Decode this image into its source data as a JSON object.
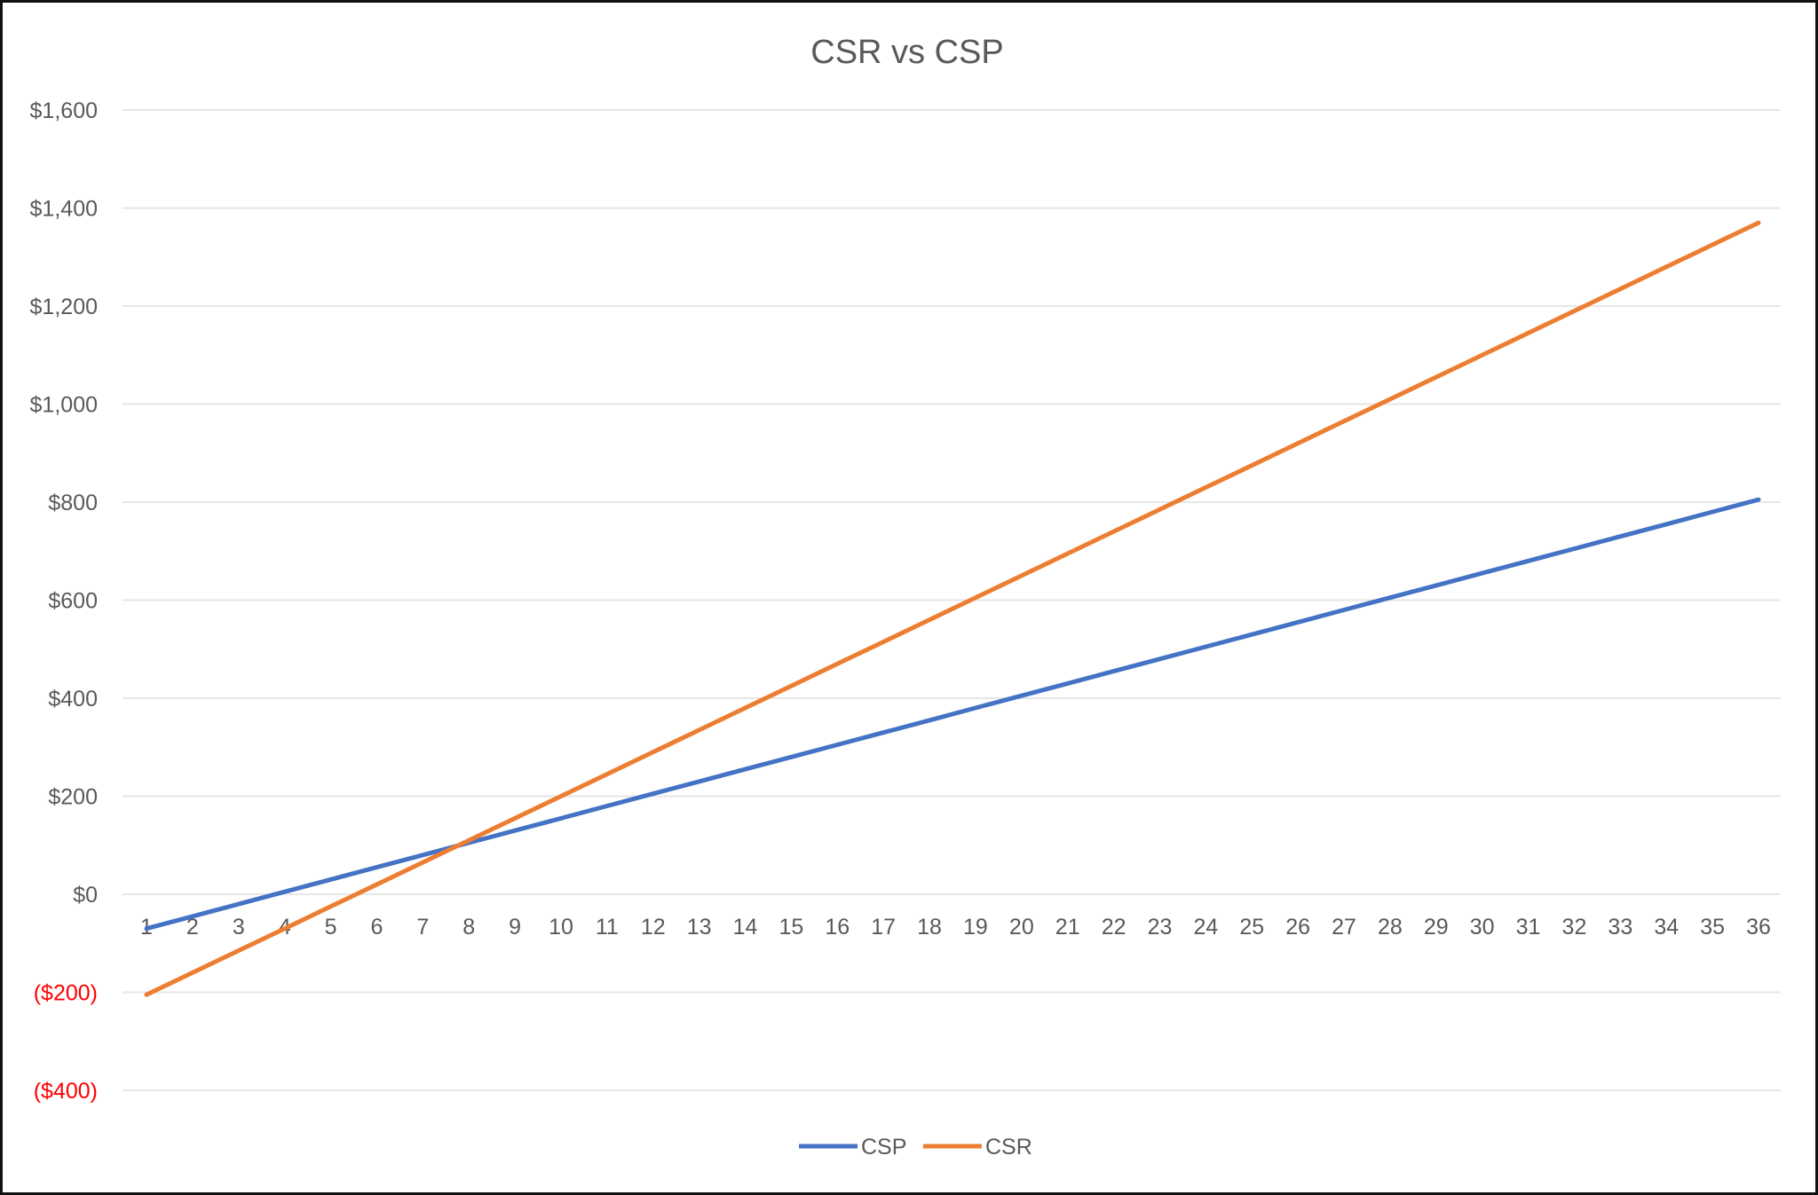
{
  "chart_data": {
    "type": "line",
    "title": "CSR vs CSP",
    "xlabel": "",
    "ylabel": "",
    "x": [
      1,
      2,
      3,
      4,
      5,
      6,
      7,
      8,
      9,
      10,
      11,
      12,
      13,
      14,
      15,
      16,
      17,
      18,
      19,
      20,
      21,
      22,
      23,
      24,
      25,
      26,
      27,
      28,
      29,
      30,
      31,
      32,
      33,
      34,
      35,
      36
    ],
    "ylim": [
      -400,
      1600
    ],
    "yticks": [
      1600,
      1400,
      1200,
      1000,
      800,
      600,
      400,
      200,
      0,
      -200,
      -400
    ],
    "ytick_labels": [
      "$1,600",
      "$1,400",
      "$1,200",
      "$1,000",
      "$800",
      "$600",
      "$400",
      "$200",
      "$0",
      "($200)",
      "($400)"
    ],
    "negative_tick_color": "#ff0000",
    "grid": true,
    "legend_position": "bottom",
    "series": [
      {
        "name": "CSP",
        "color": "#4472c4",
        "start": -70,
        "end": 805
      },
      {
        "name": "CSR",
        "color": "#ed7d31",
        "start": -205,
        "end": 1370
      }
    ]
  }
}
